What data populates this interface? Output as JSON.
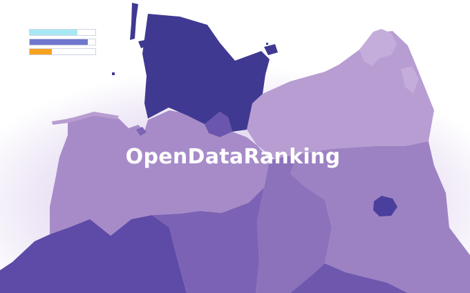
{
  "title": "OpenDataRanking",
  "legend": {
    "bars": [
      {
        "name": "bar-cyan",
        "fraction": 0.73,
        "color": "#a6e9f2"
      },
      {
        "name": "bar-blue",
        "fraction": 0.88,
        "color": "#6f76cd"
      },
      {
        "name": "bar-orange",
        "fraction": 0.34,
        "color": "#f6a21e"
      }
    ]
  },
  "colors": {
    "dark": "#3f3991",
    "medium": "#6b55ad",
    "light": "#a78bc9",
    "lighter": "#b79dd2",
    "glow": "#e9e1f3"
  }
}
